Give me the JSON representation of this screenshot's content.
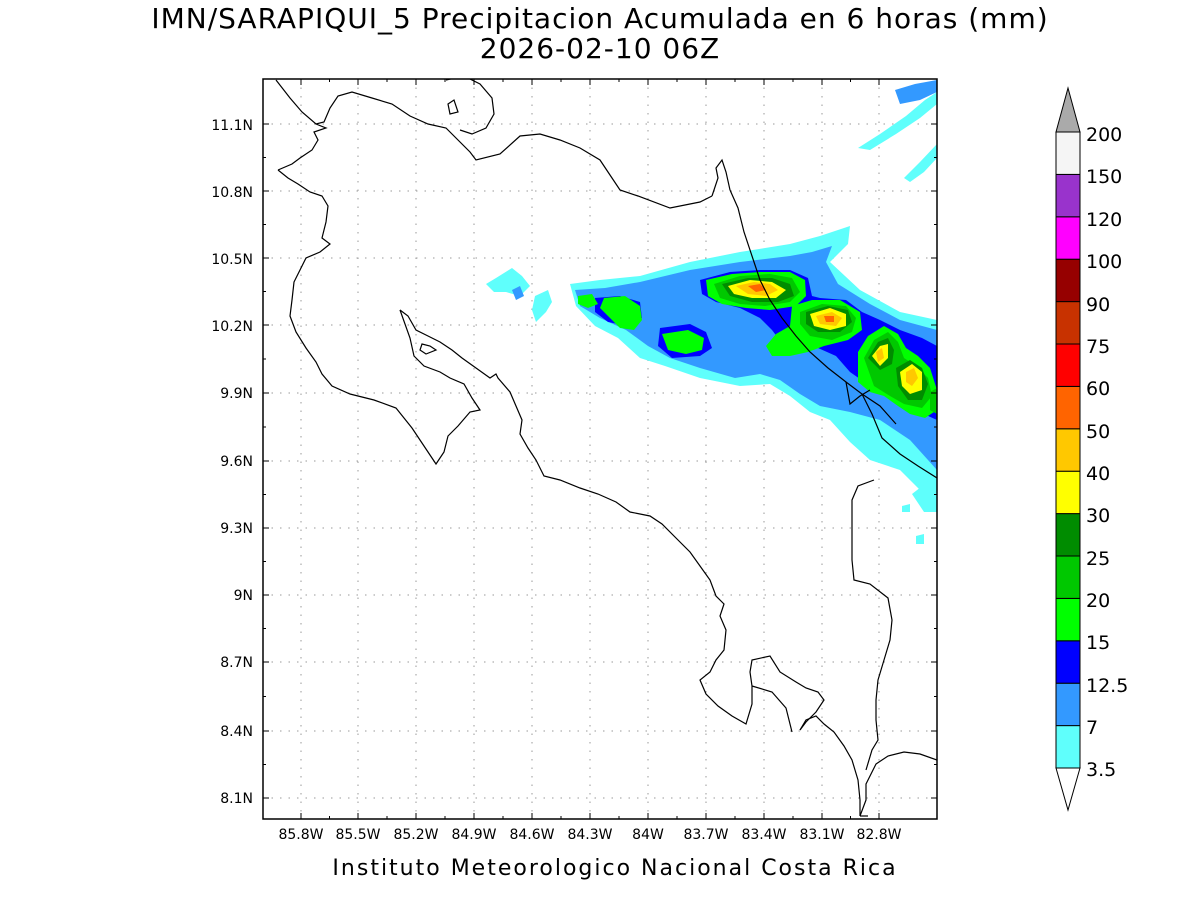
{
  "title": {
    "line1": "IMN/SARAPIQUI_5 Precipitacion Acumulada en 6 horas (mm)",
    "line2": "2026-02-10 06Z"
  },
  "footer": "Instituto Meteorologico Nacional Costa Rica",
  "axes": {
    "lat_ticks": [
      "11.1N",
      "10.8N",
      "10.5N",
      "10.2N",
      "9.9N",
      "9.6N",
      "9.3N",
      "9N",
      "8.7N",
      "8.4N",
      "8.1N"
    ],
    "lon_ticks": [
      "85.8W",
      "85.5W",
      "85.2W",
      "84.9W",
      "84.6W",
      "84.3W",
      "84W",
      "83.7W",
      "83.4W",
      "83.1W",
      "82.8W"
    ]
  },
  "legend": {
    "labels": [
      "3.5",
      "7",
      "12.5",
      "15",
      "20",
      "25",
      "30",
      "40",
      "50",
      "60",
      "75",
      "90",
      "100",
      "120",
      "150",
      "200"
    ],
    "colors": [
      "#5ffffc",
      "#3399ff",
      "#0000ff",
      "#00ff00",
      "#00c800",
      "#008c00",
      "#ffff00",
      "#ffc800",
      "#ff6400",
      "#ff0000",
      "#c83200",
      "#960000",
      "#ff00ff",
      "#9933cc",
      "#f5f5f5"
    ],
    "arrow_colors": {
      "low": "#ffffff",
      "high": "#aaaaaa"
    }
  }
}
